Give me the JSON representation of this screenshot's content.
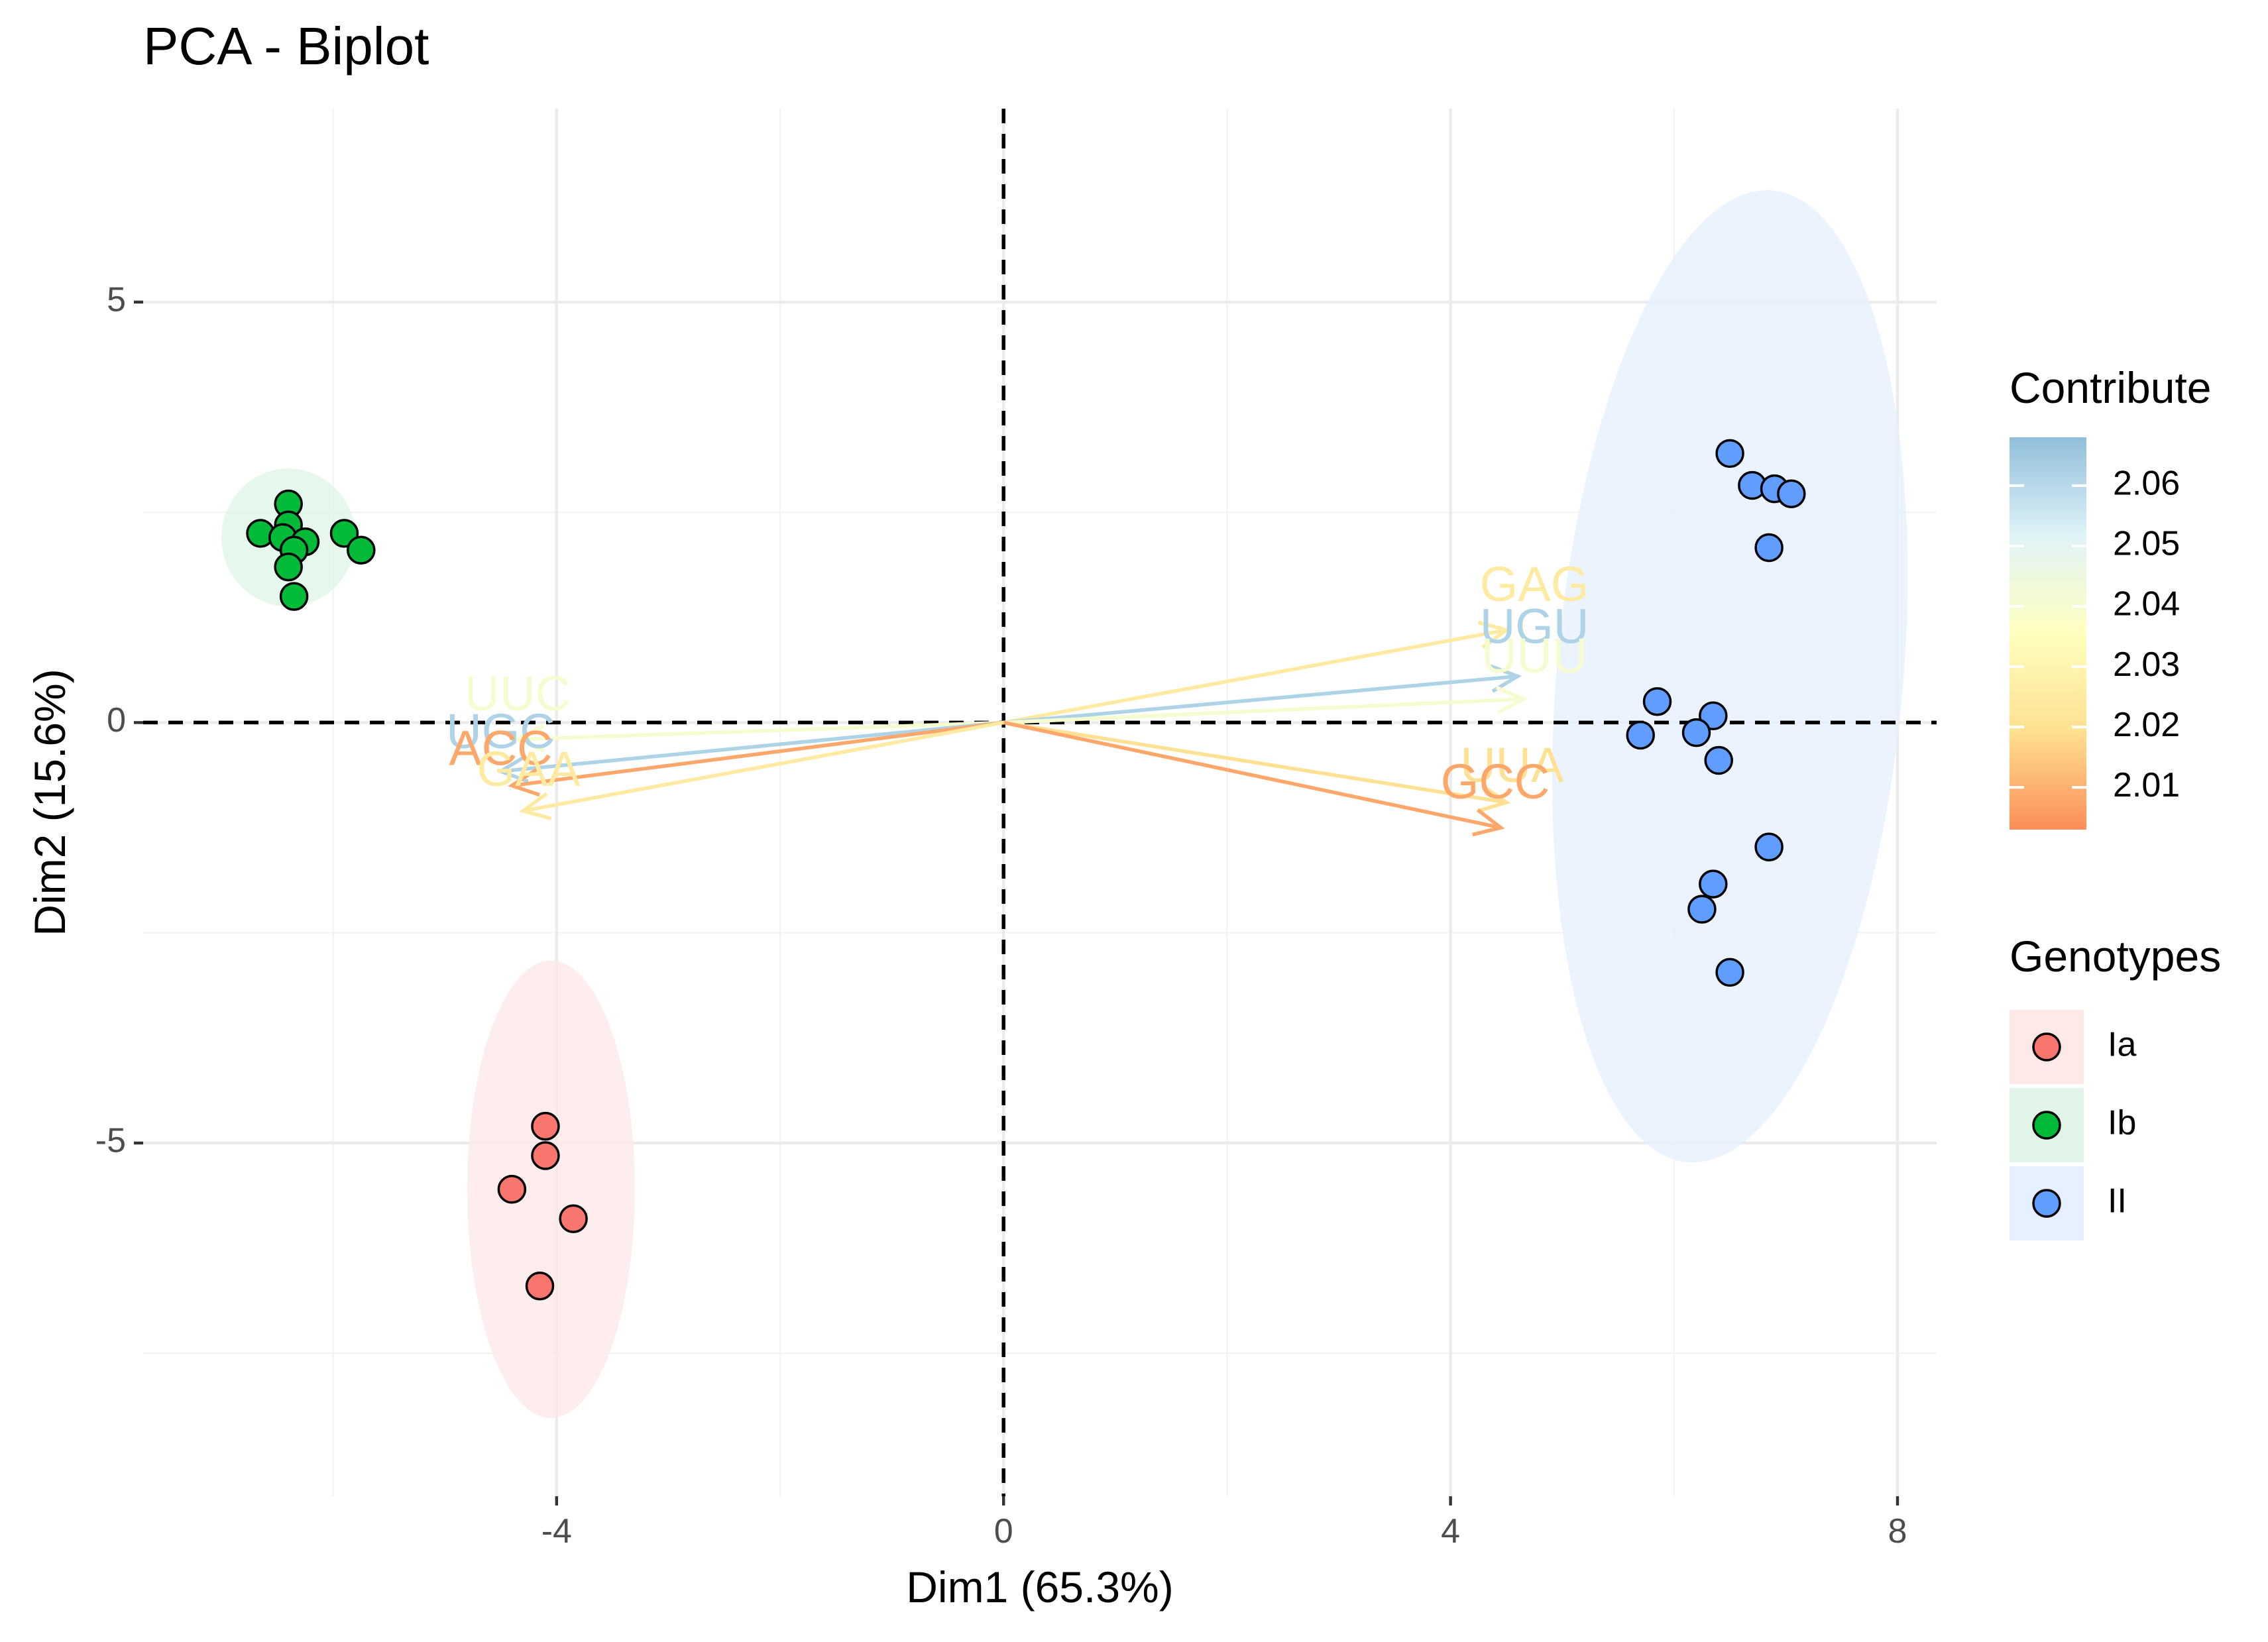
{
  "chart_data": {
    "type": "scatter",
    "title": "PCA - Biplot",
    "xlabel": "Dim1 (65.3%)",
    "ylabel": "Dim2 (15.6%)",
    "xlim": [
      -7.7,
      8.35
    ],
    "ylim": [
      -9.2,
      7.3
    ],
    "x_ticks": [
      -4,
      0,
      4,
      8
    ],
    "x_tick_labels": [
      "-4",
      "0",
      "4",
      "8"
    ],
    "y_ticks": [
      -5,
      0,
      5
    ],
    "y_tick_labels": [
      "-5",
      "0",
      "5"
    ],
    "grid": true,
    "zero_lines": "dashed",
    "series": [
      {
        "name": "Ia",
        "color": "#f8766d",
        "points": [
          {
            "x": -4.1,
            "y": -4.8
          },
          {
            "x": -4.1,
            "y": -5.15
          },
          {
            "x": -4.4,
            "y": -5.55
          },
          {
            "x": -3.85,
            "y": -5.9
          },
          {
            "x": -4.15,
            "y": -6.7
          }
        ],
        "ellipse": {
          "cx": -4.05,
          "cy": -5.55,
          "rx": 0.75,
          "ry": 2.72,
          "angle": 0
        }
      },
      {
        "name": "Ib",
        "color": "#00ba38",
        "points": [
          {
            "x": -6.4,
            "y": 2.6
          },
          {
            "x": -6.4,
            "y": 2.35
          },
          {
            "x": -6.65,
            "y": 2.25
          },
          {
            "x": -6.45,
            "y": 2.2
          },
          {
            "x": -6.25,
            "y": 2.15
          },
          {
            "x": -6.35,
            "y": 2.05
          },
          {
            "x": -5.9,
            "y": 2.25
          },
          {
            "x": -5.75,
            "y": 2.05
          },
          {
            "x": -6.4,
            "y": 1.85
          },
          {
            "x": -6.35,
            "y": 1.5
          }
        ],
        "ellipse": {
          "cx": -6.4,
          "cy": 2.2,
          "rx": 0.6,
          "ry": 0.82,
          "angle": 0
        }
      },
      {
        "name": "II",
        "color": "#619cff",
        "points": [
          {
            "x": 6.5,
            "y": 3.2
          },
          {
            "x": 6.7,
            "y": 2.82
          },
          {
            "x": 6.9,
            "y": 2.78
          },
          {
            "x": 7.05,
            "y": 2.72
          },
          {
            "x": 6.85,
            "y": 2.08
          },
          {
            "x": 5.85,
            "y": 0.25
          },
          {
            "x": 6.35,
            "y": 0.08
          },
          {
            "x": 5.7,
            "y": -0.15
          },
          {
            "x": 6.2,
            "y": -0.12
          },
          {
            "x": 6.4,
            "y": -0.45
          },
          {
            "x": 6.85,
            "y": -1.48
          },
          {
            "x": 6.35,
            "y": -1.92
          },
          {
            "x": 6.25,
            "y": -2.22
          },
          {
            "x": 6.5,
            "y": -2.97
          }
        ],
        "ellipse": {
          "cx": 6.5,
          "cy": 0.55,
          "rx": 1.55,
          "ry": 5.8,
          "angle": 5
        }
      }
    ],
    "variables": [
      {
        "name": "GAG",
        "x": 4.5,
        "y": 1.1,
        "contrib": 2.025,
        "label_x": 4.75,
        "label_y": 1.6
      },
      {
        "name": "UGU",
        "x": 4.6,
        "y": 0.55,
        "contrib": 2.062,
        "label_x": 4.75,
        "label_y": 1.1
      },
      {
        "name": "UUU",
        "x": 4.65,
        "y": 0.28,
        "contrib": 2.04,
        "label_x": 4.75,
        "label_y": 0.75
      },
      {
        "name": "UUA",
        "x": 4.5,
        "y": -0.95,
        "contrib": 2.02,
        "label_x": 4.55,
        "label_y": -0.55
      },
      {
        "name": "GCC",
        "x": 4.45,
        "y": -1.25,
        "contrib": 2.008,
        "label_x": 4.4,
        "label_y": -0.75
      },
      {
        "name": "UUC",
        "x": -4.35,
        "y": -0.2,
        "contrib": 2.04,
        "label_x": -4.35,
        "label_y": 0.3
      },
      {
        "name": "UGC",
        "x": -4.5,
        "y": -0.58,
        "contrib": 2.062,
        "label_x": -4.5,
        "label_y": -0.15
      },
      {
        "name": "ACC",
        "x": -4.4,
        "y": -0.75,
        "contrib": 2.008,
        "label_x": -4.5,
        "label_y": -0.35
      },
      {
        "name": "GAA",
        "x": -4.3,
        "y": -1.05,
        "contrib": 2.025,
        "label_x": -4.25,
        "label_y": -0.6
      }
    ],
    "legend_contribute": {
      "title": "Contribute",
      "min": 2.003,
      "max": 2.068,
      "ticks": [
        2.01,
        2.02,
        2.03,
        2.04,
        2.05,
        2.06
      ],
      "tick_labels": [
        "2.01",
        "2.02",
        "2.03",
        "2.04",
        "2.05",
        "2.06"
      ],
      "colors": [
        "#fc8d59",
        "#fee090",
        "#ffffbf",
        "#e0f3f8",
        "#91bfdb"
      ]
    },
    "legend_genotypes": {
      "title": "Genotypes",
      "items": [
        {
          "label": "Ia",
          "color": "#f8766d",
          "fill": "#fde9e7"
        },
        {
          "label": "Ib",
          "color": "#00ba38",
          "fill": "#e0f5e7"
        },
        {
          "label": "II",
          "color": "#619cff",
          "fill": "#e6f0ff"
        }
      ]
    }
  }
}
